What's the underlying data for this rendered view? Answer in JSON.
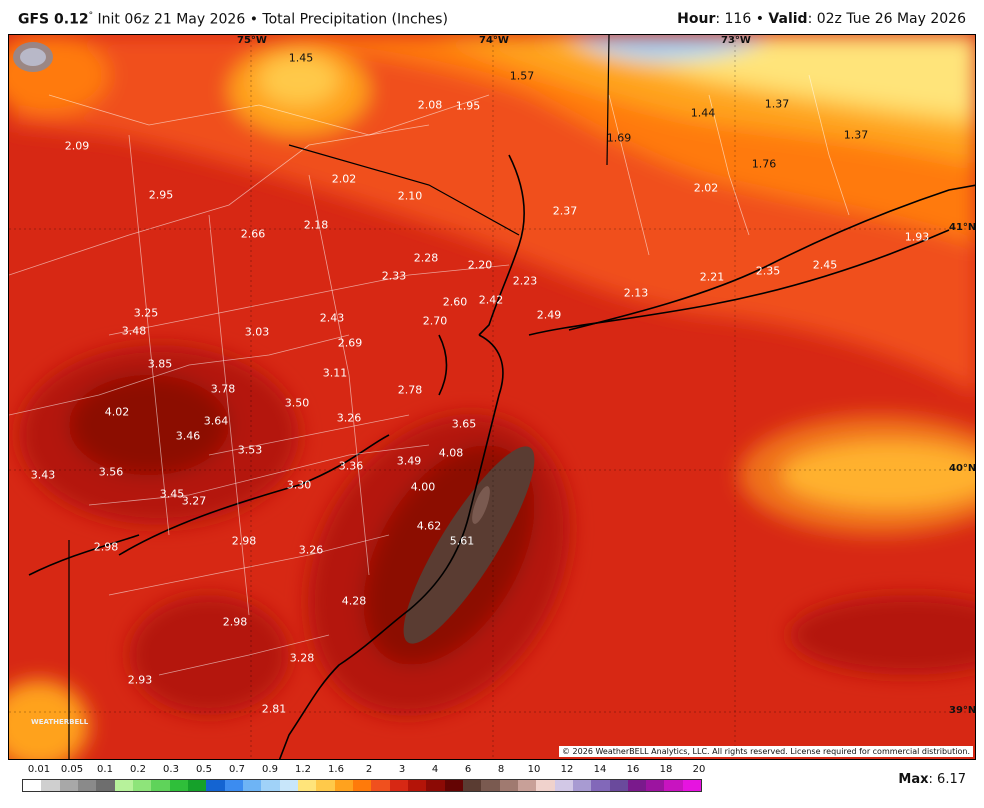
{
  "header": {
    "model": "GFS 0.12",
    "degree": "°",
    "init": "Init 06z 21 May 2026",
    "bullet": "•",
    "product": "Total Precipitation (Inches)",
    "hour_label": "Hour",
    "hour_value": ": 116",
    "valid_label": "Valid",
    "valid_value": ": 02z Tue 26 May 2026"
  },
  "graticule": {
    "lon_labels": [
      "75°W",
      "74°W",
      "73°W"
    ],
    "lat_labels": [
      "41°N",
      "40°N",
      "39°N"
    ]
  },
  "values": [
    {
      "t": "1.45",
      "d": 1
    },
    {
      "t": "1.57",
      "d": 1
    },
    {
      "t": "1.37",
      "d": 1
    },
    {
      "t": "2.08",
      "d": 0
    },
    {
      "t": "1.95",
      "d": 0
    },
    {
      "t": "1.44",
      "d": 1
    },
    {
      "t": "1.37",
      "d": 1
    },
    {
      "t": "1.69",
      "d": 1
    },
    {
      "t": "2.09",
      "d": 0
    },
    {
      "t": "1.76",
      "d": 1
    },
    {
      "t": "2.02",
      "d": 0
    },
    {
      "t": "2.95",
      "d": 0
    },
    {
      "t": "2.10",
      "d": 0
    },
    {
      "t": "2.02",
      "d": 0
    },
    {
      "t": "2.37",
      "d": 0
    },
    {
      "t": "2.18",
      "d": 0
    },
    {
      "t": "2.66",
      "d": 0
    },
    {
      "t": "1.93",
      "d": 0
    },
    {
      "t": "2.28",
      "d": 0
    },
    {
      "t": "2.20",
      "d": 0
    },
    {
      "t": "2.33",
      "d": 0
    },
    {
      "t": "2.23",
      "d": 0
    },
    {
      "t": "2.21",
      "d": 0
    },
    {
      "t": "2.35",
      "d": 0
    },
    {
      "t": "2.45",
      "d": 0
    },
    {
      "t": "2.13",
      "d": 0
    },
    {
      "t": "2.60",
      "d": 0
    },
    {
      "t": "2.42",
      "d": 0
    },
    {
      "t": "3.25",
      "d": 0
    },
    {
      "t": "2.43",
      "d": 0
    },
    {
      "t": "2.70",
      "d": 0
    },
    {
      "t": "2.49",
      "d": 0
    },
    {
      "t": "3.48",
      "d": 0
    },
    {
      "t": "3.03",
      "d": 0
    },
    {
      "t": "2.69",
      "d": 0
    },
    {
      "t": "3.85",
      "d": 0
    },
    {
      "t": "3.11",
      "d": 0
    },
    {
      "t": "3.78",
      "d": 0
    },
    {
      "t": "2.78",
      "d": 0
    },
    {
      "t": "3.50",
      "d": 0
    },
    {
      "t": "4.02",
      "d": 0
    },
    {
      "t": "3.26",
      "d": 0
    },
    {
      "t": "3.64",
      "d": 0
    },
    {
      "t": "3.65",
      "d": 0
    },
    {
      "t": "3.46",
      "d": 0
    },
    {
      "t": "3.53",
      "d": 0
    },
    {
      "t": "4.08",
      "d": 0
    },
    {
      "t": "3.36",
      "d": 0
    },
    {
      "t": "3.49",
      "d": 0
    },
    {
      "t": "3.43",
      "d": 0
    },
    {
      "t": "3.56",
      "d": 0
    },
    {
      "t": "4.00",
      "d": 0
    },
    {
      "t": "3.30",
      "d": 0
    },
    {
      "t": "3.45",
      "d": 0
    },
    {
      "t": "3.27",
      "d": 0
    },
    {
      "t": "4.62",
      "d": 0
    },
    {
      "t": "5.61",
      "d": 0
    },
    {
      "t": "2.98",
      "d": 0
    },
    {
      "t": "2.98",
      "d": 0
    },
    {
      "t": "3.26",
      "d": 0
    },
    {
      "t": "4.28",
      "d": 0
    },
    {
      "t": "2.98",
      "d": 0
    },
    {
      "t": "3.28",
      "d": 0
    },
    {
      "t": "2.93",
      "d": 0
    },
    {
      "t": "2.81",
      "d": 0
    }
  ],
  "copyright": "© 2026 WeatherBELL Analytics, LLC. All rights reserved. License required for commercial distribution.",
  "logo_text": "WEATHERBELL",
  "legend": {
    "labels": [
      "0.01",
      "0.05",
      "0.1",
      "0.2",
      "0.3",
      "0.5",
      "0.7",
      "0.9",
      "1.2",
      "1.6",
      "2",
      "3",
      "4",
      "6",
      "8",
      "10",
      "12",
      "14",
      "16",
      "18",
      "20"
    ],
    "colors": [
      "#ffffff",
      "#cfcfcf",
      "#a8a8a8",
      "#8a8a8a",
      "#6e6e6e",
      "#b7f29b",
      "#8ee47a",
      "#5fd35a",
      "#2fbf3a",
      "#15a12a",
      "#1464d2",
      "#3c8cf0",
      "#6eb4f5",
      "#a0d2f8",
      "#c8e6fa",
      "#ffe47a",
      "#ffc94a",
      "#ffa21e",
      "#ff7a0a",
      "#f0501e",
      "#d72814",
      "#b41408",
      "#8c0a05",
      "#640403",
      "#5a3c32",
      "#7a5a50",
      "#a07a70",
      "#c8a098",
      "#f0d2cc",
      "#d2c8e6",
      "#a89bd2",
      "#8268b9",
      "#6a4a9c",
      "#7a1a8c",
      "#9c14a0",
      "#c814c0",
      "#e614e0"
    ],
    "max_label": "Max",
    "max_value": ": 6.17"
  }
}
